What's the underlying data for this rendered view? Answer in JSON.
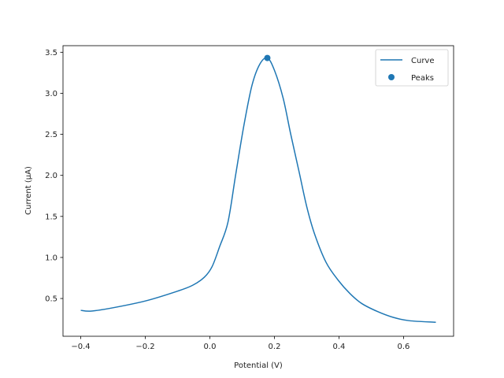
{
  "chart_data": {
    "type": "line",
    "title": "",
    "xlabel": "Potential (V)",
    "ylabel": "Current (µA)",
    "xlim": [
      -0.455,
      0.755
    ],
    "ylim": [
      0.04,
      3.58
    ],
    "x_ticks": [
      -0.4,
      -0.2,
      0.0,
      0.2,
      0.4,
      0.6
    ],
    "x_tick_labels": [
      "−0.4",
      "−0.2",
      "0.0",
      "0.2",
      "0.4",
      "0.6"
    ],
    "y_ticks": [
      0.5,
      1.0,
      1.5,
      2.0,
      2.5,
      3.0,
      3.5
    ],
    "y_tick_labels": [
      "0.5",
      "1.0",
      "1.5",
      "2.0",
      "2.5",
      "3.0",
      "3.5"
    ],
    "grid": false,
    "legend_position": "upper right",
    "series": [
      {
        "name": "Curve",
        "kind": "line",
        "color": "#1f77b4",
        "x": [
          -0.4,
          -0.37,
          -0.31,
          -0.2,
          -0.1,
          -0.054,
          -0.017,
          0.007,
          0.03,
          0.056,
          0.08,
          0.105,
          0.13,
          0.154,
          0.178,
          0.2,
          0.227,
          0.25,
          0.276,
          0.3,
          0.324,
          0.36,
          0.398,
          0.434,
          0.47,
          0.52,
          0.568,
          0.617,
          0.7
        ],
        "y": [
          0.356,
          0.346,
          0.38,
          0.47,
          0.59,
          0.66,
          0.76,
          0.89,
          1.13,
          1.43,
          2.01,
          2.6,
          3.09,
          3.35,
          3.43,
          3.28,
          2.94,
          2.51,
          2.05,
          1.62,
          1.29,
          0.94,
          0.72,
          0.56,
          0.44,
          0.34,
          0.27,
          0.23,
          0.21
        ]
      },
      {
        "name": "Peaks",
        "kind": "scatter",
        "color": "#1f77b4",
        "x": [
          0.178
        ],
        "y": [
          3.43
        ]
      }
    ]
  },
  "legend": {
    "items": [
      {
        "label": "Curve",
        "symbol": "line"
      },
      {
        "label": "Peaks",
        "symbol": "dot"
      }
    ]
  }
}
